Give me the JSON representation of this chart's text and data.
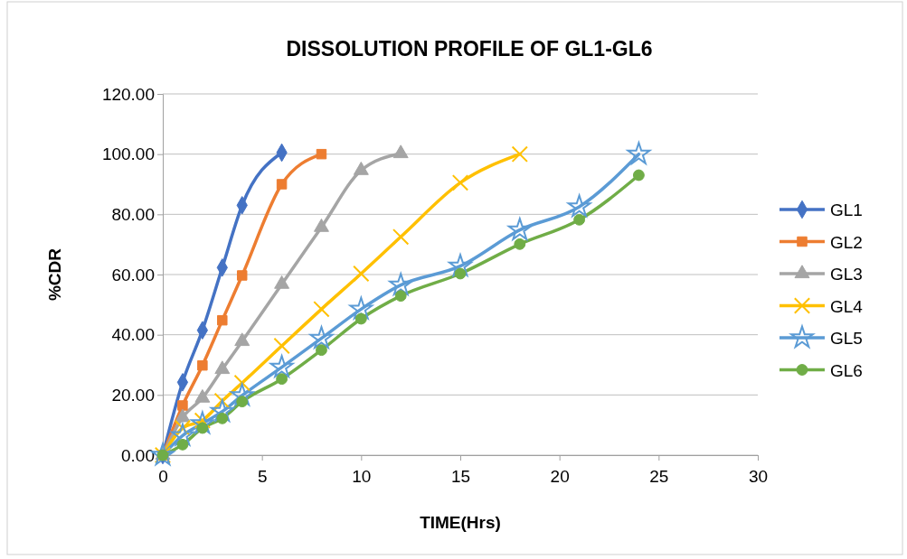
{
  "chart_data": {
    "type": "line",
    "title": "DISSOLUTION PROFILE OF GL1-GL6",
    "xlabel": "TIME(Hrs)",
    "ylabel": "%CDR",
    "xlim": [
      0,
      30
    ],
    "xticks": [
      0,
      5,
      10,
      15,
      20,
      25,
      30
    ],
    "ylim": [
      0,
      120
    ],
    "yticks": [
      {
        "value": 0,
        "label": "0.00"
      },
      {
        "value": 20,
        "label": "20.00"
      },
      {
        "value": 40,
        "label": "40.00"
      },
      {
        "value": 60,
        "label": "60.00"
      },
      {
        "value": 80,
        "label": "80.00"
      },
      {
        "value": 100,
        "label": "100.00"
      },
      {
        "value": 120,
        "label": "120.00"
      }
    ],
    "grid": "y",
    "legend": "right",
    "series": [
      {
        "name": "GL1",
        "color": "#4472c4",
        "marker": "diamond",
        "x": [
          0,
          1,
          2,
          3,
          4,
          6
        ],
        "values": [
          0,
          24.2,
          41.5,
          62.3,
          83,
          100.5
        ]
      },
      {
        "name": "GL2",
        "color": "#ed7d31",
        "marker": "square",
        "x": [
          0,
          1,
          2,
          3,
          4,
          6,
          8
        ],
        "values": [
          0,
          16.5,
          29.8,
          44.8,
          59.7,
          90,
          100
        ]
      },
      {
        "name": "GL3",
        "color": "#a5a5a5",
        "marker": "triangle",
        "x": [
          0,
          1,
          2,
          3,
          4,
          6,
          8,
          10,
          12
        ],
        "values": [
          0,
          12.5,
          19,
          28.5,
          37.8,
          56.8,
          75.7,
          94.6,
          100.2
        ]
      },
      {
        "name": "GL4",
        "color": "#ffc000",
        "marker": "cross",
        "x": [
          0,
          1,
          2,
          3,
          4,
          6,
          8,
          10,
          12,
          15,
          18
        ],
        "values": [
          0,
          9,
          11.5,
          18,
          24,
          36.3,
          48.5,
          60.3,
          72.5,
          90.5,
          100
        ]
      },
      {
        "name": "GL5",
        "color": "#5b9bd5",
        "marker": "star",
        "x": [
          0,
          1,
          2,
          3,
          4,
          6,
          8,
          10,
          12,
          15,
          18,
          21,
          24
        ],
        "values": [
          0,
          6.5,
          10.5,
          14.5,
          19.8,
          29.2,
          38.8,
          48.5,
          56.5,
          62.8,
          74.8,
          82.5,
          100
        ]
      },
      {
        "name": "GL6",
        "color": "#70ad47",
        "marker": "circle",
        "x": [
          0,
          1,
          2,
          3,
          4,
          6,
          8,
          10,
          12,
          15,
          18,
          21,
          24
        ],
        "values": [
          0,
          3.5,
          9,
          12.2,
          17.8,
          25.3,
          34.9,
          45.3,
          52.9,
          60.3,
          70.1,
          78.2,
          93
        ]
      }
    ]
  }
}
